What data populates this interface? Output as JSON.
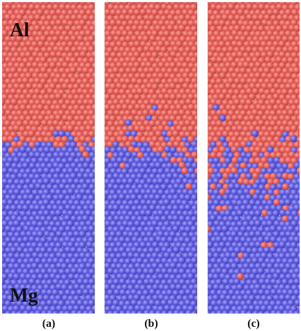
{
  "panels": [
    {
      "label": "(a)"
    },
    {
      "label": "(b)"
    },
    {
      "label": "(c)"
    }
  ],
  "top_element": "Al",
  "bottom_element": "Mg"
}
